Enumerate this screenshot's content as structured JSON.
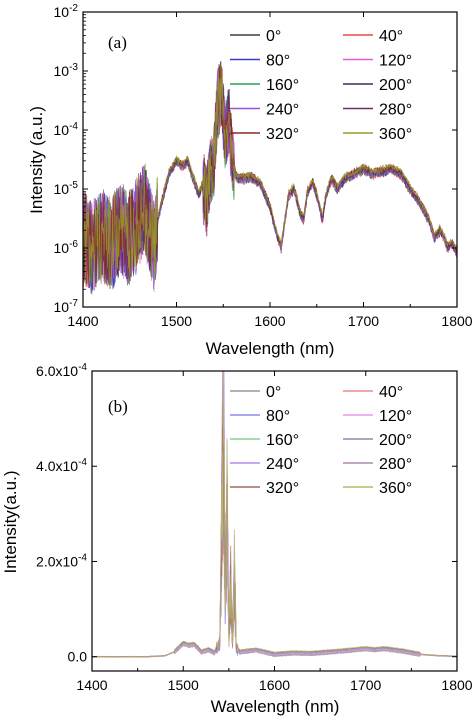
{
  "chart_data": [
    {
      "type": "line",
      "panel_label": "(a)",
      "xlabel": "Wavelength (nm)",
      "ylabel": "Intensity (a.u.)",
      "xlim": [
        1400,
        1800
      ],
      "ylim": [
        1e-07,
        0.01
      ],
      "yscale": "log",
      "x_ticks": [
        "1400",
        "1500",
        "1600",
        "1700",
        "1800"
      ],
      "y_ticks": [
        {
          "base": "10",
          "exp": "-7",
          "value": 1e-07
        },
        {
          "base": "10",
          "exp": "-6",
          "value": 1e-06
        },
        {
          "base": "10",
          "exp": "-5",
          "value": 1e-05
        },
        {
          "base": "10",
          "exp": "-4",
          "value": 0.0001
        },
        {
          "base": "10",
          "exp": "-3",
          "value": 0.001
        },
        {
          "base": "10",
          "exp": "-2",
          "value": 0.01
        }
      ],
      "legend_position": "top-right",
      "grid": false,
      "spectrum": {
        "x": [
          1400,
          1410,
          1420,
          1430,
          1440,
          1450,
          1460,
          1466,
          1472,
          1476,
          1480,
          1486,
          1492,
          1500,
          1506,
          1512,
          1518,
          1524,
          1528,
          1532,
          1536,
          1540,
          1544,
          1548,
          1552,
          1556,
          1560,
          1564,
          1570,
          1580,
          1590,
          1600,
          1606,
          1612,
          1616,
          1620,
          1626,
          1632,
          1636,
          1640,
          1646,
          1652,
          1656,
          1660,
          1666,
          1672,
          1680,
          1690,
          1700,
          1710,
          1720,
          1730,
          1740,
          1750,
          1760,
          1770,
          1776,
          1782,
          1786,
          1790,
          1795,
          1800
        ],
        "y": [
          1.5e-06,
          1e-06,
          1.6e-06,
          1.2e-06,
          2e-06,
          1.5e-06,
          3e-06,
          5e-06,
          2e-06,
          1e-06,
          3e-06,
          8e-06,
          1.8e-05,
          3e-05,
          2.5e-05,
          3e-05,
          1.5e-05,
          8e-06,
          1.2e-05,
          6e-06,
          2e-05,
          3e-05,
          0.0003,
          0.00045,
          8e-05,
          0.00015,
          3e-05,
          1.6e-05,
          1.5e-05,
          1.6e-05,
          1.2e-05,
          5e-06,
          2e-06,
          1e-06,
          3e-06,
          8e-06,
          1e-05,
          4e-06,
          3e-06,
          9e-06,
          1.3e-05,
          6e-06,
          3e-06,
          8e-06,
          1.5e-05,
          1e-05,
          1.5e-05,
          1.8e-05,
          2.2e-05,
          1.8e-05,
          2e-05,
          2.2e-05,
          1.8e-05,
          1e-05,
          6e-06,
          3e-06,
          1.5e-06,
          2e-06,
          1.5e-06,
          1e-06,
          1.2e-06,
          8e-07
        ]
      },
      "series": [
        {
          "name": "0°",
          "color": "#3f3f3f"
        },
        {
          "name": "40°",
          "color": "#e8484f"
        },
        {
          "name": "80°",
          "color": "#3a3ad8"
        },
        {
          "name": "120°",
          "color": "#e05fd6"
        },
        {
          "name": "160°",
          "color": "#2f9d4f"
        },
        {
          "name": "200°",
          "color": "#303060"
        },
        {
          "name": "240°",
          "color": "#9a4fe0"
        },
        {
          "name": "280°",
          "color": "#6a2f6a"
        },
        {
          "name": "320°",
          "color": "#8a2a20"
        },
        {
          "name": "360°",
          "color": "#9a9a2a"
        }
      ]
    },
    {
      "type": "line",
      "panel_label": "(b)",
      "xlabel": "Wavelength (nm)",
      "ylabel": "Intensity(a.u.)",
      "xlim": [
        1400,
        1800
      ],
      "ylim": [
        -3e-05,
        0.0006
      ],
      "yscale": "linear",
      "x_ticks": [
        "1400",
        "1500",
        "1600",
        "1700",
        "1800"
      ],
      "y_ticks": [
        {
          "label": "0.0",
          "value": 0
        },
        {
          "label": "2.0x10",
          "exp": "-4",
          "value": 0.0002
        },
        {
          "label": "4.0x10",
          "exp": "-4",
          "value": 0.0004
        },
        {
          "label": "6.0x10",
          "exp": "-4",
          "value": 0.0006
        }
      ],
      "legend_position": "top-right",
      "grid": false,
      "spectrum": {
        "x": [
          1400,
          1460,
          1480,
          1490,
          1500,
          1506,
          1512,
          1520,
          1528,
          1534,
          1540,
          1542,
          1544,
          1546,
          1548,
          1550,
          1552,
          1554,
          1556,
          1558,
          1562,
          1570,
          1580,
          1600,
          1620,
          1640,
          1660,
          1680,
          1700,
          1710,
          1720,
          1740,
          1760,
          1780,
          1800
        ],
        "y": [
          0,
          0.0,
          2e-06,
          1e-05,
          2.8e-05,
          2.4e-05,
          2.6e-05,
          1e-05,
          1.5e-05,
          8e-06,
          3e-05,
          0.00025,
          0.00055,
          0.0001,
          0.0003,
          5e-05,
          0.00015,
          3e-05,
          0.00018,
          2e-05,
          1e-05,
          1.2e-05,
          1.4e-05,
          5e-06,
          8e-06,
          7e-06,
          1e-05,
          1.3e-05,
          1.7e-05,
          1.5e-05,
          1.7e-05,
          1.2e-05,
          5e-06,
          2e-06,
          1e-06
        ]
      },
      "series": [
        {
          "name": "0°",
          "color": "#9a9a9a"
        },
        {
          "name": "40°",
          "color": "#ef8a8a"
        },
        {
          "name": "80°",
          "color": "#8a8aee"
        },
        {
          "name": "120°",
          "color": "#e89ae8"
        },
        {
          "name": "160°",
          "color": "#8ad08a"
        },
        {
          "name": "200°",
          "color": "#8a8ab0"
        },
        {
          "name": "240°",
          "color": "#b88aee"
        },
        {
          "name": "280°",
          "color": "#b08ab0"
        },
        {
          "name": "320°",
          "color": "#a06a60"
        },
        {
          "name": "360°",
          "color": "#b8b86a"
        }
      ]
    }
  ]
}
